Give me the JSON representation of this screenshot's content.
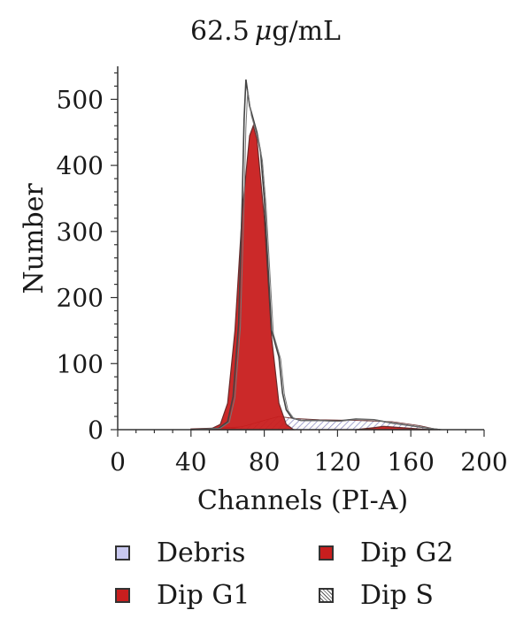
{
  "chart_data": {
    "type": "area",
    "title": "62.5 μg/mL",
    "title_parts": {
      "value": "62.5",
      "unit_mu": "μ",
      "unit_rest": "g/mL"
    },
    "xlabel": "Channels (PI-A)",
    "ylabel": "Number",
    "xlim": [
      0,
      200
    ],
    "ylim": [
      0,
      550
    ],
    "xticks": [
      0,
      40,
      80,
      120,
      160,
      200
    ],
    "yticks": [
      0,
      100,
      200,
      300,
      400,
      500
    ],
    "grid": false,
    "legend_position": "bottom",
    "series": [
      {
        "name": "Debris",
        "color": "#c9c9f0",
        "pattern": "solid",
        "x": [
          40,
          60,
          80,
          100,
          120,
          140,
          160,
          175
        ],
        "y": [
          1,
          3,
          5,
          4,
          3,
          2,
          1,
          0
        ]
      },
      {
        "name": "Dip G1",
        "color": "#c81e1e",
        "pattern": "solid",
        "x": [
          50,
          56,
          60,
          64,
          68,
          72,
          74,
          76,
          80,
          84,
          88,
          92,
          96
        ],
        "y": [
          0,
          8,
          40,
          150,
          330,
          445,
          460,
          440,
          320,
          140,
          40,
          8,
          0
        ]
      },
      {
        "name": "Dip G2",
        "color": "#c81e1e",
        "pattern": "solid",
        "x": [
          130,
          140,
          145,
          150,
          160,
          170
        ],
        "y": [
          0,
          3,
          5,
          4,
          2,
          0
        ]
      },
      {
        "name": "Dip S",
        "color": "#ffffff",
        "pattern": "hatched",
        "x": [
          60,
          70,
          80,
          88,
          96,
          110,
          130,
          150,
          165,
          175
        ],
        "y": [
          0,
          6,
          14,
          20,
          17,
          15,
          14,
          12,
          6,
          0
        ]
      }
    ],
    "raw_histogram": {
      "x": [
        40,
        55,
        60,
        63,
        66,
        68,
        69,
        70,
        72,
        74,
        76,
        78,
        80,
        82,
        84,
        85,
        86,
        88,
        90,
        92,
        95,
        100,
        110,
        120,
        130,
        140,
        150,
        160,
        170,
        176
      ],
      "y": [
        0,
        2,
        12,
        50,
        160,
        350,
        470,
        530,
        490,
        470,
        450,
        420,
        350,
        250,
        150,
        140,
        130,
        110,
        55,
        30,
        18,
        14,
        14,
        13,
        16,
        15,
        10,
        6,
        2,
        0
      ]
    }
  }
}
